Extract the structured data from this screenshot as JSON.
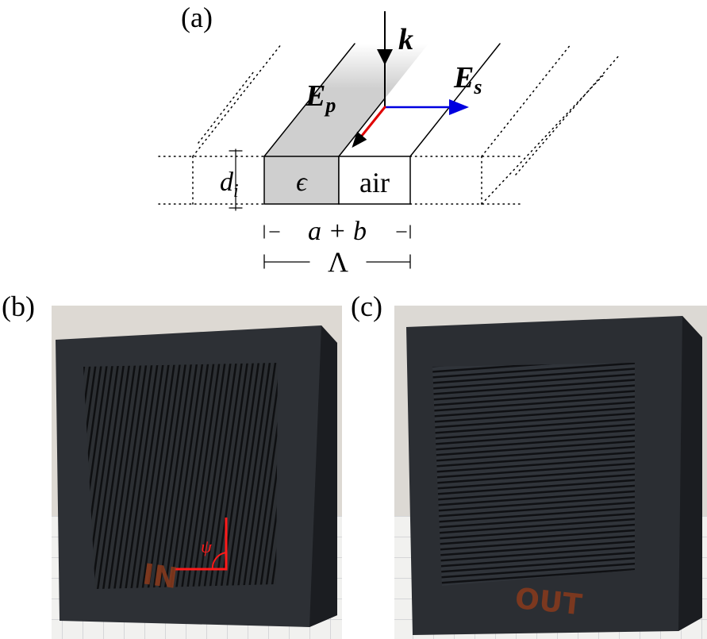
{
  "panels": {
    "a": {
      "label": "(a)",
      "wave_vector": "k",
      "field_p": {
        "symbol": "E",
        "subscript": "p"
      },
      "field_s": {
        "symbol": "E",
        "subscript": "s"
      },
      "thickness": {
        "symbol": "d",
        "subscript": "i"
      },
      "material": "ϵ",
      "gap": "air",
      "widths": "a + b",
      "period": "Λ"
    },
    "b": {
      "label": "(b)",
      "angle": "ψ",
      "marking": "IN"
    },
    "c": {
      "label": "(c)",
      "marking": "OUT"
    }
  }
}
